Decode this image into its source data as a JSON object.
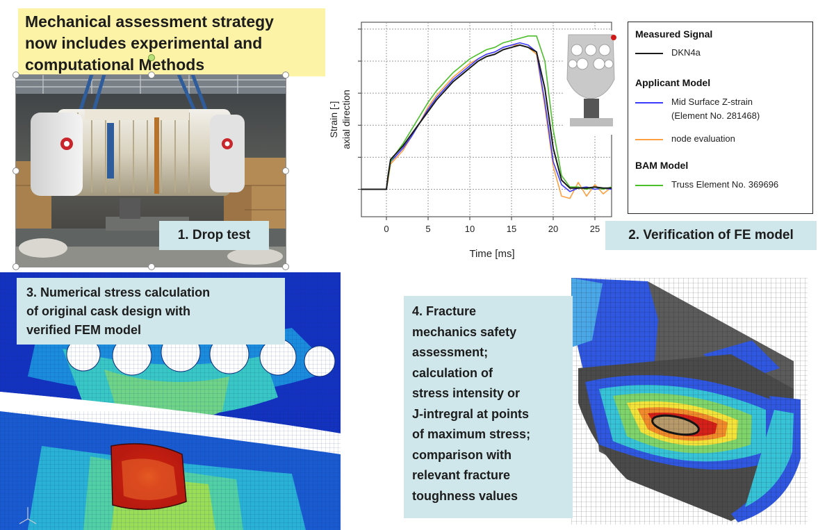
{
  "title": "Mechanical assessment strategy\nnow includes experimental and\ncomputational Methods",
  "steps": {
    "drop_test": "1. Drop test",
    "verification": "2. Verification of FE model",
    "stress_calc": "3. Numerical stress calculation\nof original cask design with\nverified FEM model",
    "fracture": "4. Fracture\nmechanics safety\nassessment;\ncalculation of\nstress intensity or\nJ-intregral at points\nof maximum stress;\ncomparison with\nrelevant fracture\ntoughness values"
  },
  "legend": {
    "measured_title": "Measured Signal",
    "applicant_title": "Applicant Model",
    "bam_title": "BAM Model"
  },
  "colors": {
    "title_bg": "#fdf3a6",
    "label_bg": "#cfe7ea",
    "measured": "#1a1a1a",
    "applicant_midsurface": "#3b3bff",
    "applicant_node": "#ffa040",
    "bam_truss": "#4bbf2a"
  },
  "chart_data": {
    "type": "line",
    "xlabel": "Time [ms]",
    "ylabel": "Strain [-]\naxial direction",
    "xlim": [
      -3,
      27
    ],
    "x_ticks": [
      0,
      5,
      10,
      15,
      20,
      25
    ],
    "y_tick_labels_shown": false,
    "grid": true,
    "legend_placement": "right",
    "series": [
      {
        "name": "DKN4a",
        "group": "Measured Signal",
        "color": "#1a1a1a",
        "x": [
          -3,
          0,
          0.2,
          0.5,
          1,
          2,
          3,
          4,
          5,
          6,
          7,
          8,
          9,
          10,
          11,
          12,
          13,
          14,
          15,
          16,
          17,
          18,
          19,
          20,
          21,
          22,
          23,
          24,
          25,
          26,
          27
        ],
        "y": [
          0,
          0,
          0.6,
          1.3,
          1.5,
          1.9,
          2.4,
          2.9,
          3.4,
          3.9,
          4.3,
          4.7,
          5.0,
          5.3,
          5.6,
          5.8,
          5.9,
          6.1,
          6.2,
          6.3,
          6.2,
          6.0,
          4.4,
          1.8,
          0.4,
          0.05,
          0.05,
          0.05,
          0.1,
          0.05,
          0.05
        ]
      },
      {
        "name": "Mid Surface Z-strain\n(Element No. 281468)",
        "group": "Applicant Model",
        "color": "#3b3bff",
        "x": [
          -3,
          0,
          0.2,
          0.5,
          1,
          2,
          3,
          4,
          5,
          6,
          7,
          8,
          9,
          10,
          11,
          12,
          13,
          14,
          15,
          16,
          17,
          18,
          19,
          20,
          21,
          22,
          23,
          24,
          25,
          26,
          27
        ],
        "y": [
          0,
          0,
          0.5,
          1.2,
          1.4,
          1.8,
          2.3,
          2.9,
          3.5,
          4.0,
          4.4,
          4.8,
          5.1,
          5.4,
          5.7,
          5.9,
          6.0,
          6.2,
          6.3,
          6.4,
          6.3,
          6.0,
          3.8,
          1.2,
          0.2,
          -0.1,
          0.05,
          0.1,
          0.0,
          0.05,
          0.0
        ]
      },
      {
        "name": "node evaluation",
        "group": "Applicant Model",
        "color": "#ffa040",
        "x": [
          -3,
          0,
          0.2,
          0.5,
          1,
          2,
          3,
          4,
          5,
          6,
          7,
          8,
          9,
          10,
          11,
          12,
          13,
          14,
          15,
          16,
          17,
          18,
          19,
          20,
          21,
          22,
          23,
          24,
          25,
          26,
          27
        ],
        "y": [
          0,
          0,
          0.4,
          1.1,
          1.3,
          1.7,
          2.3,
          2.9,
          3.6,
          4.1,
          4.5,
          4.9,
          5.2,
          5.5,
          5.7,
          5.9,
          6.0,
          6.2,
          6.3,
          6.3,
          6.2,
          5.9,
          3.6,
          1.0,
          -0.3,
          -0.4,
          0.3,
          -0.3,
          0.2,
          -0.2,
          0.1
        ]
      },
      {
        "name": "Truss Element No. 369696",
        "group": "BAM Model",
        "color": "#4bbf2a",
        "x": [
          -3,
          0,
          0.2,
          0.5,
          1,
          2,
          3,
          4,
          5,
          6,
          7,
          8,
          9,
          10,
          11,
          12,
          13,
          14,
          15,
          16,
          17,
          18,
          19,
          20,
          21,
          22,
          23,
          24,
          25,
          26,
          27
        ],
        "y": [
          0,
          0,
          0.5,
          1.2,
          1.5,
          2.0,
          2.6,
          3.2,
          3.8,
          4.3,
          4.7,
          5.1,
          5.4,
          5.7,
          5.9,
          6.1,
          6.2,
          6.4,
          6.5,
          6.6,
          6.7,
          6.7,
          5.6,
          2.6,
          0.6,
          0.1,
          0.1,
          0.0,
          0.1,
          0.0,
          0.1
        ]
      }
    ]
  }
}
